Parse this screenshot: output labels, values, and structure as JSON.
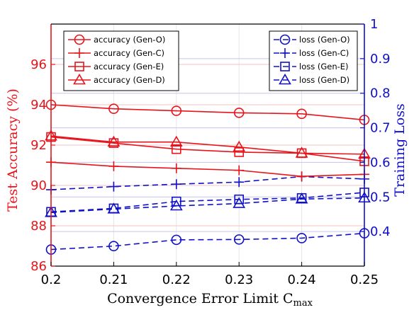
{
  "chart_data": {
    "type": "line",
    "xlabel": "Convergence Error Limit C",
    "xlabel_sub": "max",
    "ylabel_left": "Test Accuracy (%)",
    "ylabel_right": "Training Loss",
    "x": [
      0.2,
      0.21,
      0.22,
      0.23,
      0.24,
      0.25
    ],
    "x_ticks": [
      "0.2",
      "0.21",
      "0.22",
      "0.23",
      "0.24",
      "0.25"
    ],
    "ylim_left": [
      86,
      98
    ],
    "yticks_left": [
      "86",
      "88",
      "90",
      "92",
      "94",
      "96"
    ],
    "ylim_right": [
      0.3,
      1.0
    ],
    "yticks_right": [
      "0.4",
      "0.5",
      "0.6",
      "0.7",
      "0.8",
      "0.9",
      "1"
    ],
    "grid": true,
    "legend_left_position": "top-left",
    "legend_right_position": "top-right",
    "colors": {
      "accuracy": "#e8141b",
      "loss": "#1010c8"
    },
    "series_left": [
      {
        "name": "accuracy (Gen-O)",
        "marker": "circle",
        "values": [
          94.0,
          93.8,
          93.7,
          93.6,
          93.55,
          93.25
        ]
      },
      {
        "name": "accuracy (Gen-C)",
        "marker": "plus",
        "values": [
          91.15,
          90.95,
          90.85,
          90.75,
          90.45,
          90.55
        ]
      },
      {
        "name": "accuracy (Gen-E)",
        "marker": "square",
        "values": [
          92.4,
          92.1,
          91.8,
          91.65,
          91.6,
          91.2
        ]
      },
      {
        "name": "accuracy (Gen-D)",
        "marker": "triangle",
        "values": [
          92.45,
          92.15,
          92.15,
          91.9,
          91.6,
          91.55
        ]
      }
    ],
    "series_right": [
      {
        "name": "loss (Gen-O)",
        "marker": "circle",
        "values": [
          0.348,
          0.358,
          0.376,
          0.377,
          0.381,
          0.395
        ]
      },
      {
        "name": "loss (Gen-C)",
        "marker": "plus",
        "values": [
          0.521,
          0.53,
          0.537,
          0.543,
          0.559,
          0.552
        ]
      },
      {
        "name": "loss (Gen-E)",
        "marker": "square",
        "values": [
          0.457,
          0.467,
          0.487,
          0.493,
          0.497,
          0.513
        ]
      },
      {
        "name": "loss (Gen-D)",
        "marker": "triangle",
        "values": [
          0.455,
          0.465,
          0.474,
          0.481,
          0.494,
          0.497
        ]
      }
    ]
  }
}
